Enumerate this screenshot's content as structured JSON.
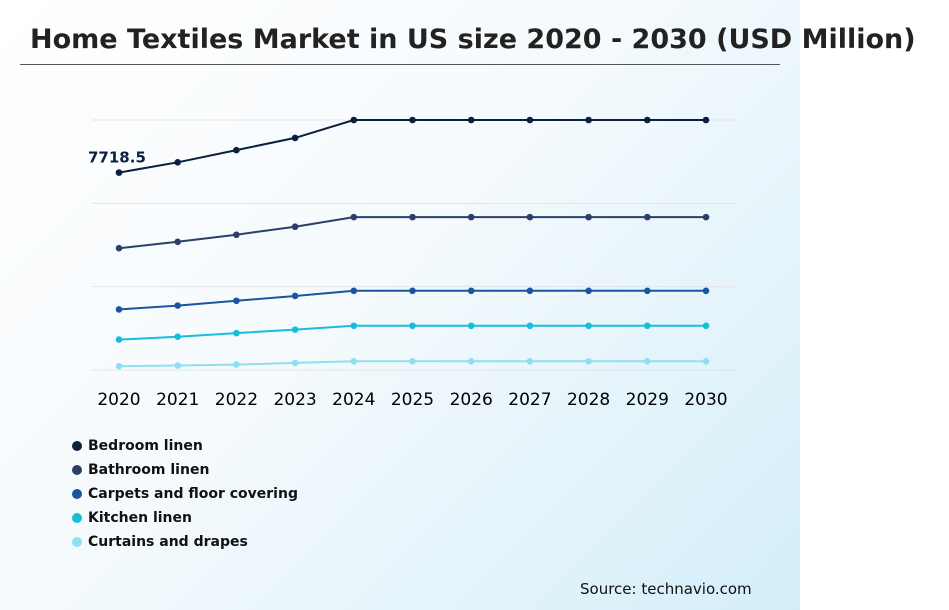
{
  "chart_data": {
    "type": "line",
    "title": "Home Textiles Market in US size 2020 - 2030 (USD Million)",
    "xlabel": "",
    "ylabel": "",
    "x": [
      "2020",
      "2021",
      "2022",
      "2023",
      "2024",
      "2025",
      "2026",
      "2027",
      "2028",
      "2029",
      "2030"
    ],
    "series": [
      {
        "name": "Bedroom linen",
        "color": "#0b1f3f",
        "values": [
          7718.5,
          8040,
          8420,
          8800,
          9360,
          9360,
          9360,
          9360,
          9360,
          9360,
          9360
        ]
      },
      {
        "name": "Bathroom linen",
        "color": "#2b3f6b",
        "values": [
          5360,
          5560,
          5780,
          6030,
          6330,
          6330,
          6330,
          6330,
          6330,
          6330,
          6330
        ]
      },
      {
        "name": "Carpets and floor covering",
        "color": "#1a56a0",
        "values": [
          3450,
          3570,
          3720,
          3870,
          4030,
          4030,
          4030,
          4030,
          4030,
          4030,
          4030
        ]
      },
      {
        "name": "Kitchen linen",
        "color": "#16bedc",
        "values": [
          2510,
          2600,
          2710,
          2820,
          2940,
          2940,
          2940,
          2940,
          2940,
          2940,
          2940
        ]
      },
      {
        "name": "Curtains and drapes",
        "color": "#8fdff2",
        "values": [
          1680,
          1700,
          1730,
          1780,
          1830,
          1830,
          1830,
          1830,
          1830,
          1830,
          1830
        ]
      }
    ],
    "data_labels": [
      {
        "series": 0,
        "index": 0,
        "text": "7718.5"
      }
    ],
    "ylim": [
      1560,
      9360
    ],
    "grid": true,
    "y_tick_labels_shown": false,
    "legend_position": "bottom-left"
  },
  "source": "Source: technavio.com"
}
